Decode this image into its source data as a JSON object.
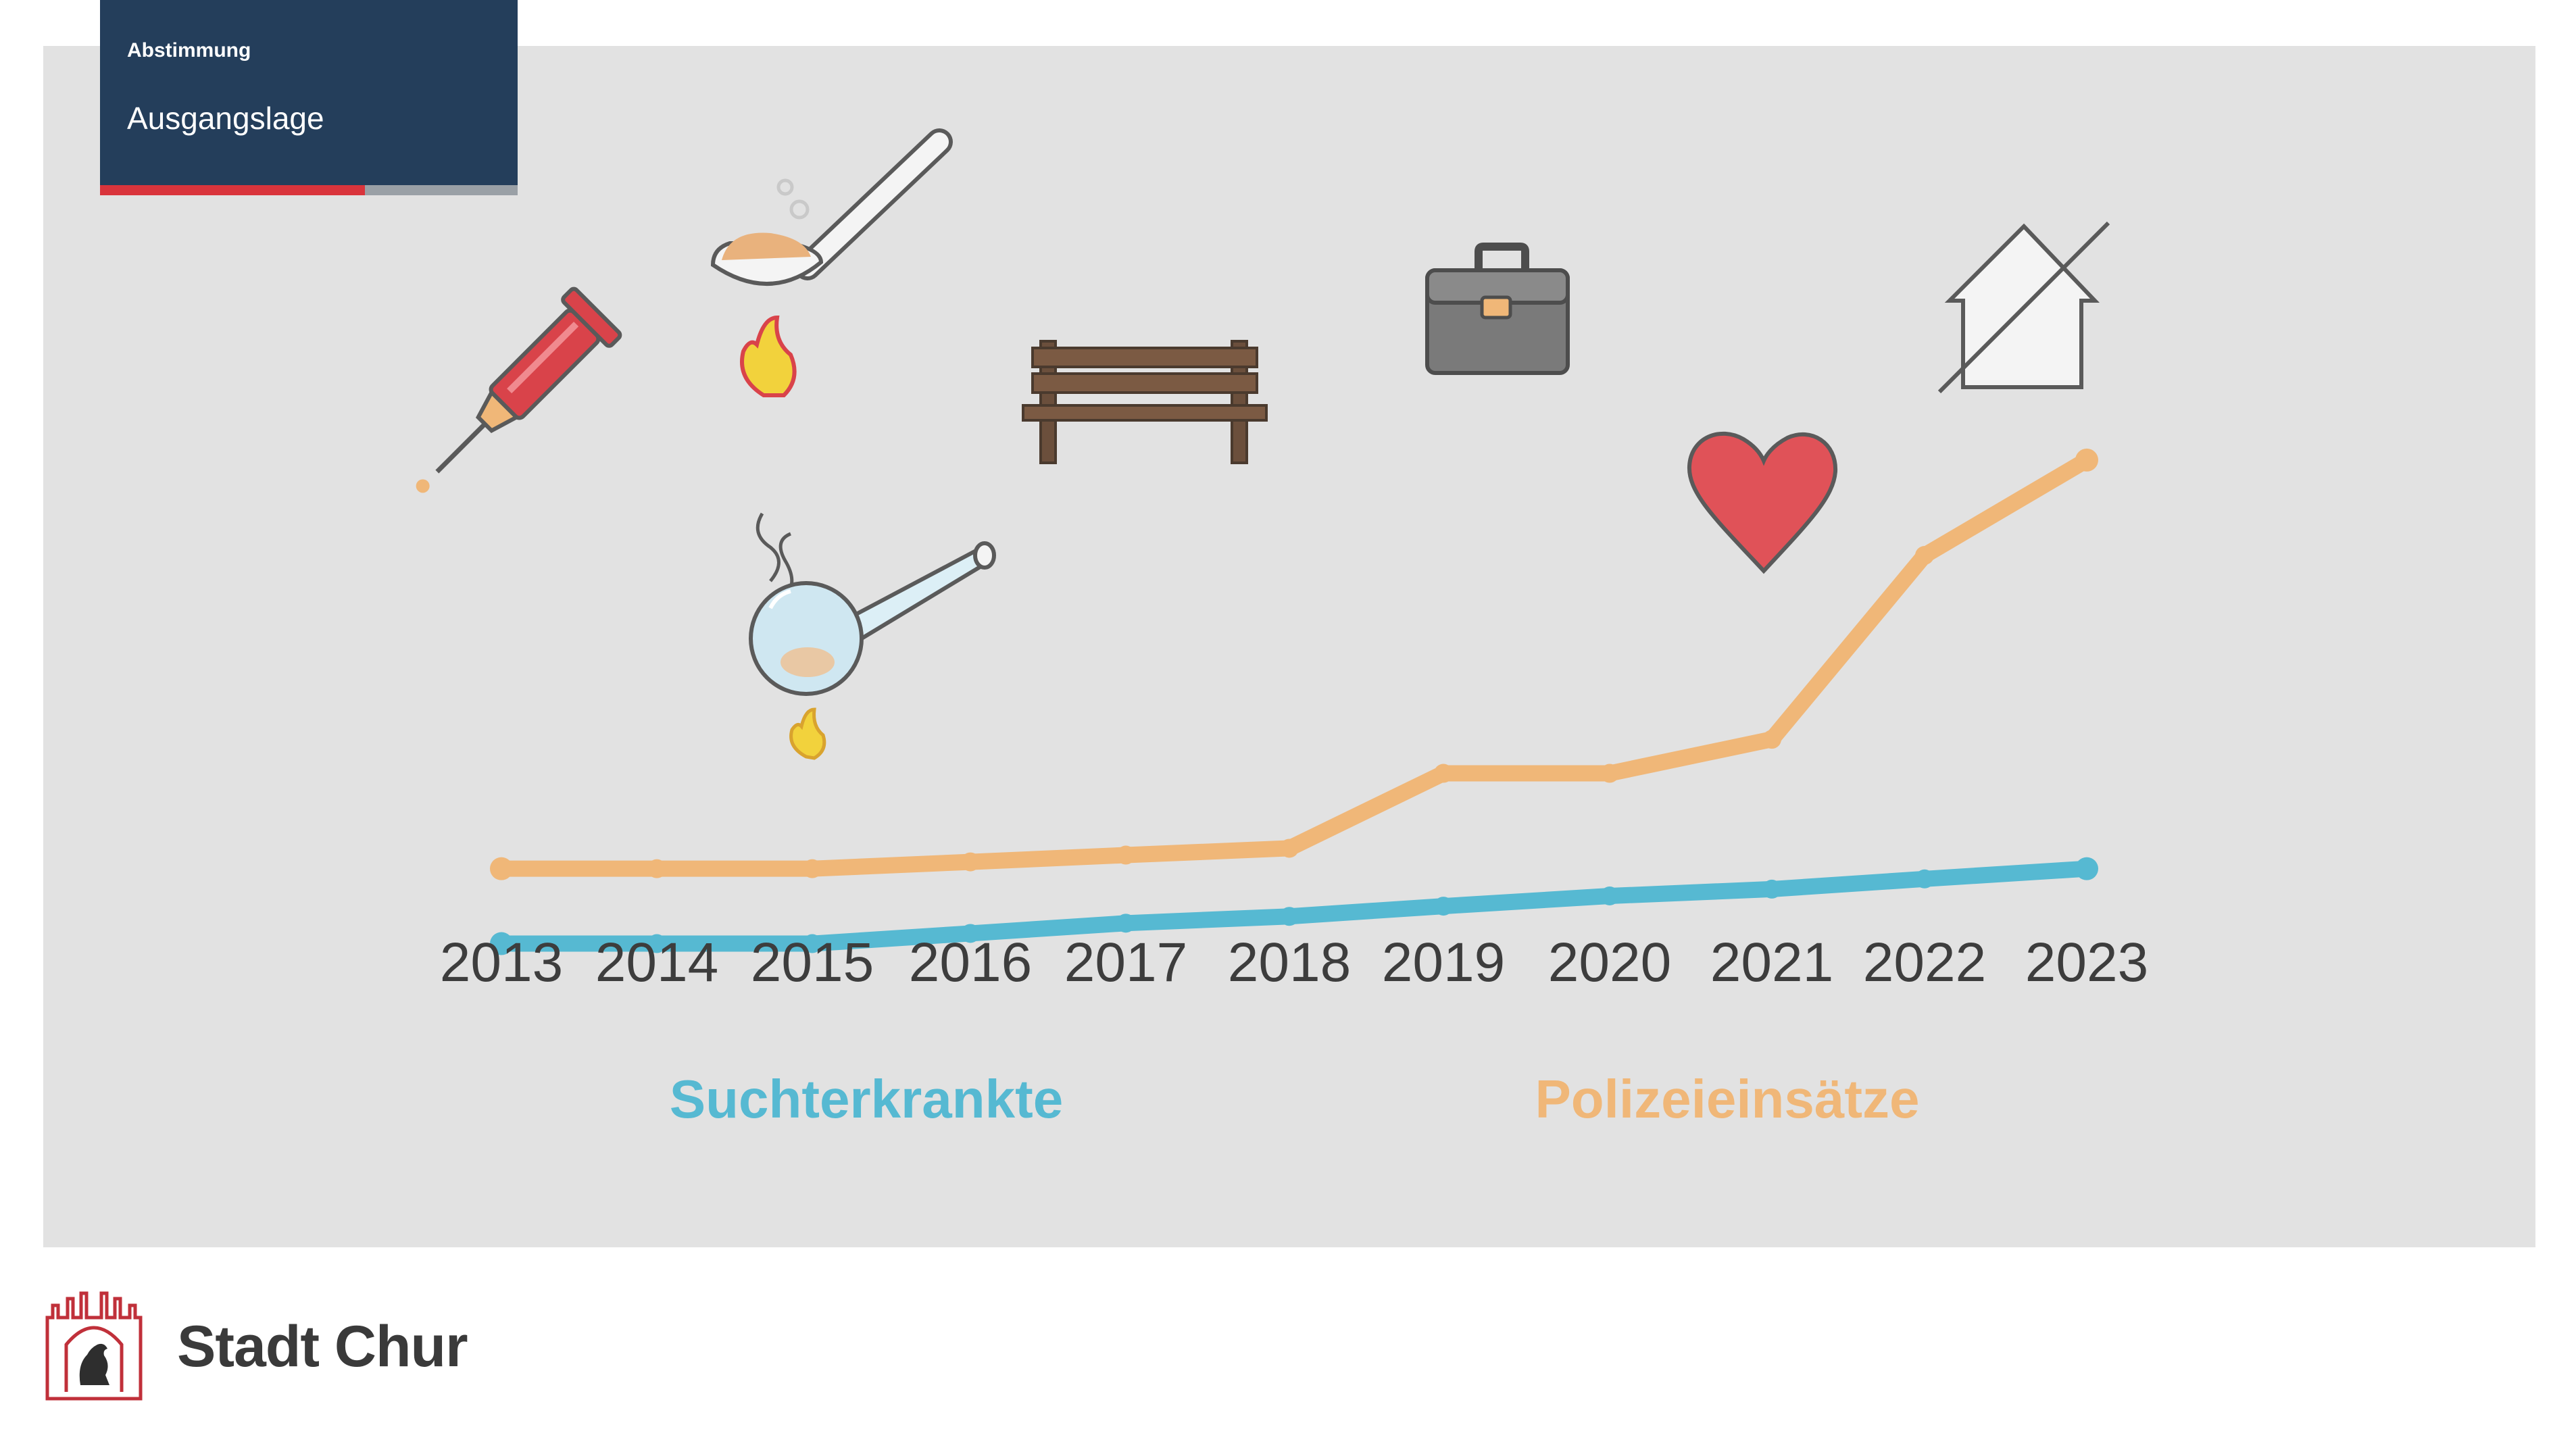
{
  "header": {
    "kicker": "Abstimmung",
    "title": "Ausgangslage"
  },
  "footer": {
    "brand": "Stadt Chur"
  },
  "colors": {
    "background": "#e2e2e2",
    "header_bg": "#243e5b",
    "accent_red": "#d9343c",
    "series_blue": "#56b9d2",
    "series_orange": "#f0b778",
    "axis_text": "#3d3d3d"
  },
  "icons": [
    "syringe-icon",
    "spoon-icon",
    "glass-pipe-icon",
    "bench-icon",
    "briefcase-icon",
    "heart-icon",
    "crossed-house-icon"
  ],
  "chart_data": {
    "type": "line",
    "title": "",
    "xlabel": "",
    "ylabel": "",
    "categories": [
      "2013",
      "2014",
      "2015",
      "2016",
      "2017",
      "2018",
      "2019",
      "2020",
      "2021",
      "2022",
      "2023"
    ],
    "ylim": [
      0,
      100
    ],
    "grid": false,
    "legend_position": "bottom",
    "series": [
      {
        "name": "Polizeieinsätze",
        "color": "#f0b778",
        "values": [
          29,
          29,
          29,
          30,
          31,
          32,
          43,
          43,
          48,
          75,
          89
        ]
      },
      {
        "name": "Suchterkrankte",
        "color": "#56b9d2",
        "values": [
          18,
          18,
          18,
          19.5,
          21,
          22,
          23.5,
          25,
          26,
          27.5,
          29
        ]
      }
    ]
  }
}
